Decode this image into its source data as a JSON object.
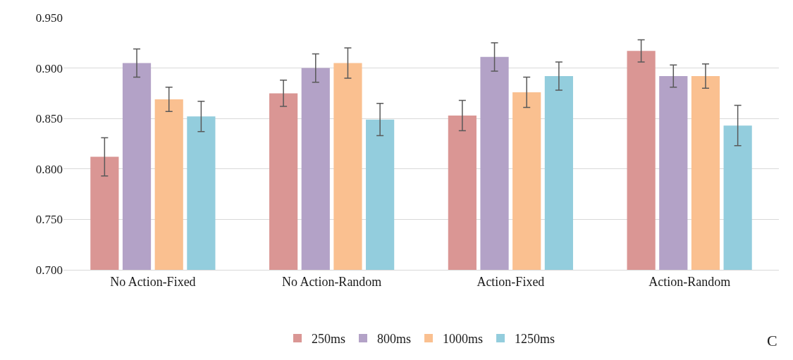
{
  "chart_data": {
    "type": "bar",
    "categories": [
      "No Action-Fixed",
      "No Action-Random",
      "Action-Fixed",
      "Action-Random"
    ],
    "series": [
      {
        "name": "250ms",
        "color": "#da9694",
        "values": [
          0.812,
          0.875,
          0.853,
          0.917
        ],
        "errors": [
          0.019,
          0.013,
          0.015,
          0.011
        ]
      },
      {
        "name": "800ms",
        "color": "#b3a2c7",
        "values": [
          0.905,
          0.9,
          0.911,
          0.892
        ],
        "errors": [
          0.014,
          0.014,
          0.014,
          0.011
        ]
      },
      {
        "name": "1000ms",
        "color": "#fac090",
        "values": [
          0.869,
          0.905,
          0.876,
          0.892
        ],
        "errors": [
          0.012,
          0.015,
          0.015,
          0.012
        ]
      },
      {
        "name": "1250ms",
        "color": "#93cddd",
        "values": [
          0.852,
          0.849,
          0.892,
          0.843
        ],
        "errors": [
          0.015,
          0.016,
          0.014,
          0.02
        ]
      }
    ],
    "ylim": [
      0.7,
      0.95
    ],
    "yticks": [
      {
        "value": 0.7,
        "label": "0.700"
      },
      {
        "value": 0.75,
        "label": "0.750"
      },
      {
        "value": 0.8,
        "label": "0.800"
      },
      {
        "value": 0.85,
        "label": "0.850"
      },
      {
        "value": 0.9,
        "label": "0.900"
      },
      {
        "value": 0.95,
        "label": "0.950"
      }
    ],
    "grid": "y",
    "legend": "bottom",
    "annotations": [
      "C"
    ]
  }
}
